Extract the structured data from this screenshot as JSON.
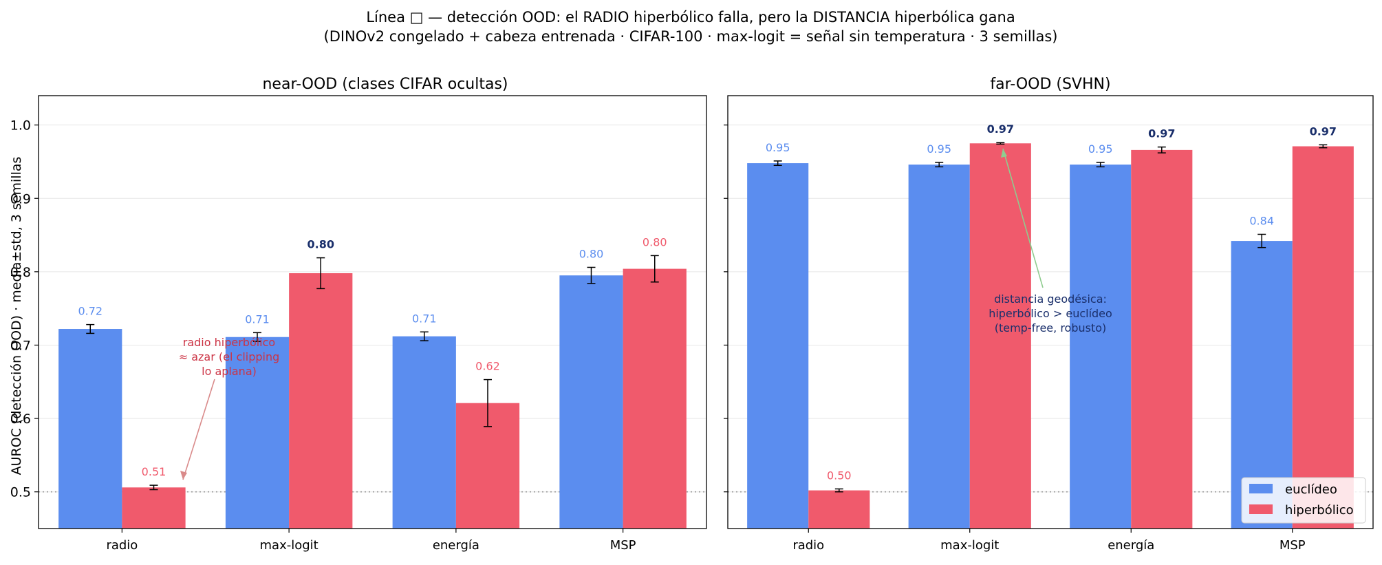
{
  "figure": {
    "title_line1": "Línea □ — detección OOD: el RADIO hiperbólico falla, pero la DISTANCIA hiperbólica gana",
    "title_line2": "(DINOv2 congelado + cabeza entrenada · CIFAR-100 · max-logit = señal sin temperatura · 3 semillas)",
    "ylabel": "AUROC (detección OOD)  ·  media±std, 3 semillas"
  },
  "colors": {
    "euclidean": "#5b8def",
    "hyperbolic": "#f05a6c",
    "euclidean_label": "#5b8def",
    "hyperbolic_label": "#f05a6c",
    "bold_label": "#1a2f6b",
    "annot_red": "#cc3344",
    "annot_navy": "#1a2f6b",
    "arrow_red": "#d98a8a",
    "arrow_green": "#8fcc8f"
  },
  "chart_data": [
    {
      "type": "bar",
      "title": "near-OOD (clases CIFAR ocultas)",
      "categories": [
        "radio",
        "max-logit",
        "energía",
        "MSP"
      ],
      "ylim": [
        0.45,
        1.04
      ],
      "yticks": [
        0.5,
        0.6,
        0.7,
        0.8,
        0.9,
        1.0
      ],
      "ytick_labels": [
        "0.5",
        "0.6",
        "0.7",
        "0.8",
        "0.9",
        "1.0"
      ],
      "grid": true,
      "chance_line": 0.5,
      "series": [
        {
          "name": "euclídeo",
          "values": [
            0.722,
            0.711,
            0.712,
            0.795
          ],
          "errors": [
            0.006,
            0.006,
            0.006,
            0.011
          ],
          "labels": [
            "0.72",
            "0.71",
            "0.71",
            "0.80"
          ],
          "label_bold": [
            false,
            false,
            false,
            false
          ]
        },
        {
          "name": "hiperbólico",
          "values": [
            0.506,
            0.798,
            0.621,
            0.804
          ],
          "errors": [
            0.003,
            0.021,
            0.032,
            0.018
          ],
          "labels": [
            "0.51",
            "0.80",
            "0.62",
            "0.80"
          ],
          "label_bold": [
            false,
            true,
            false,
            false
          ]
        }
      ],
      "annotation": {
        "lines": [
          "radio hiperbólico",
          "≈ azar (el clipping",
          "lo aplana)"
        ],
        "points_to": {
          "category": "radio",
          "series": "hiperbólico",
          "value": 0.506
        }
      }
    },
    {
      "type": "bar",
      "title": "far-OOD (SVHN)",
      "categories": [
        "radio",
        "max-logit",
        "energía",
        "MSP"
      ],
      "ylim": [
        0.45,
        1.04
      ],
      "yticks": [
        0.5,
        0.6,
        0.7,
        0.8,
        0.9,
        1.0
      ],
      "grid": true,
      "chance_line": 0.5,
      "series": [
        {
          "name": "euclídeo",
          "values": [
            0.948,
            0.946,
            0.946,
            0.842
          ],
          "errors": [
            0.003,
            0.003,
            0.003,
            0.009
          ],
          "labels": [
            "0.95",
            "0.95",
            "0.95",
            "0.84"
          ],
          "label_bold": [
            false,
            false,
            false,
            false
          ]
        },
        {
          "name": "hiperbólico",
          "values": [
            0.502,
            0.975,
            0.966,
            0.971
          ],
          "errors": [
            0.002,
            0.001,
            0.004,
            0.002
          ],
          "labels": [
            "0.50",
            "0.97",
            "0.97",
            "0.97"
          ],
          "label_bold": [
            false,
            true,
            true,
            true
          ]
        }
      ],
      "annotation": {
        "lines": [
          "distancia geodésica:",
          "hiperbólico > euclídeo",
          "(temp-free, robusto)"
        ],
        "points_to": {
          "category": "max-logit",
          "series": "hiperbólico",
          "value": 0.975
        }
      },
      "legend": {
        "placement": "lower-right",
        "entries": [
          "euclídeo",
          "hiperbólico"
        ]
      }
    }
  ]
}
